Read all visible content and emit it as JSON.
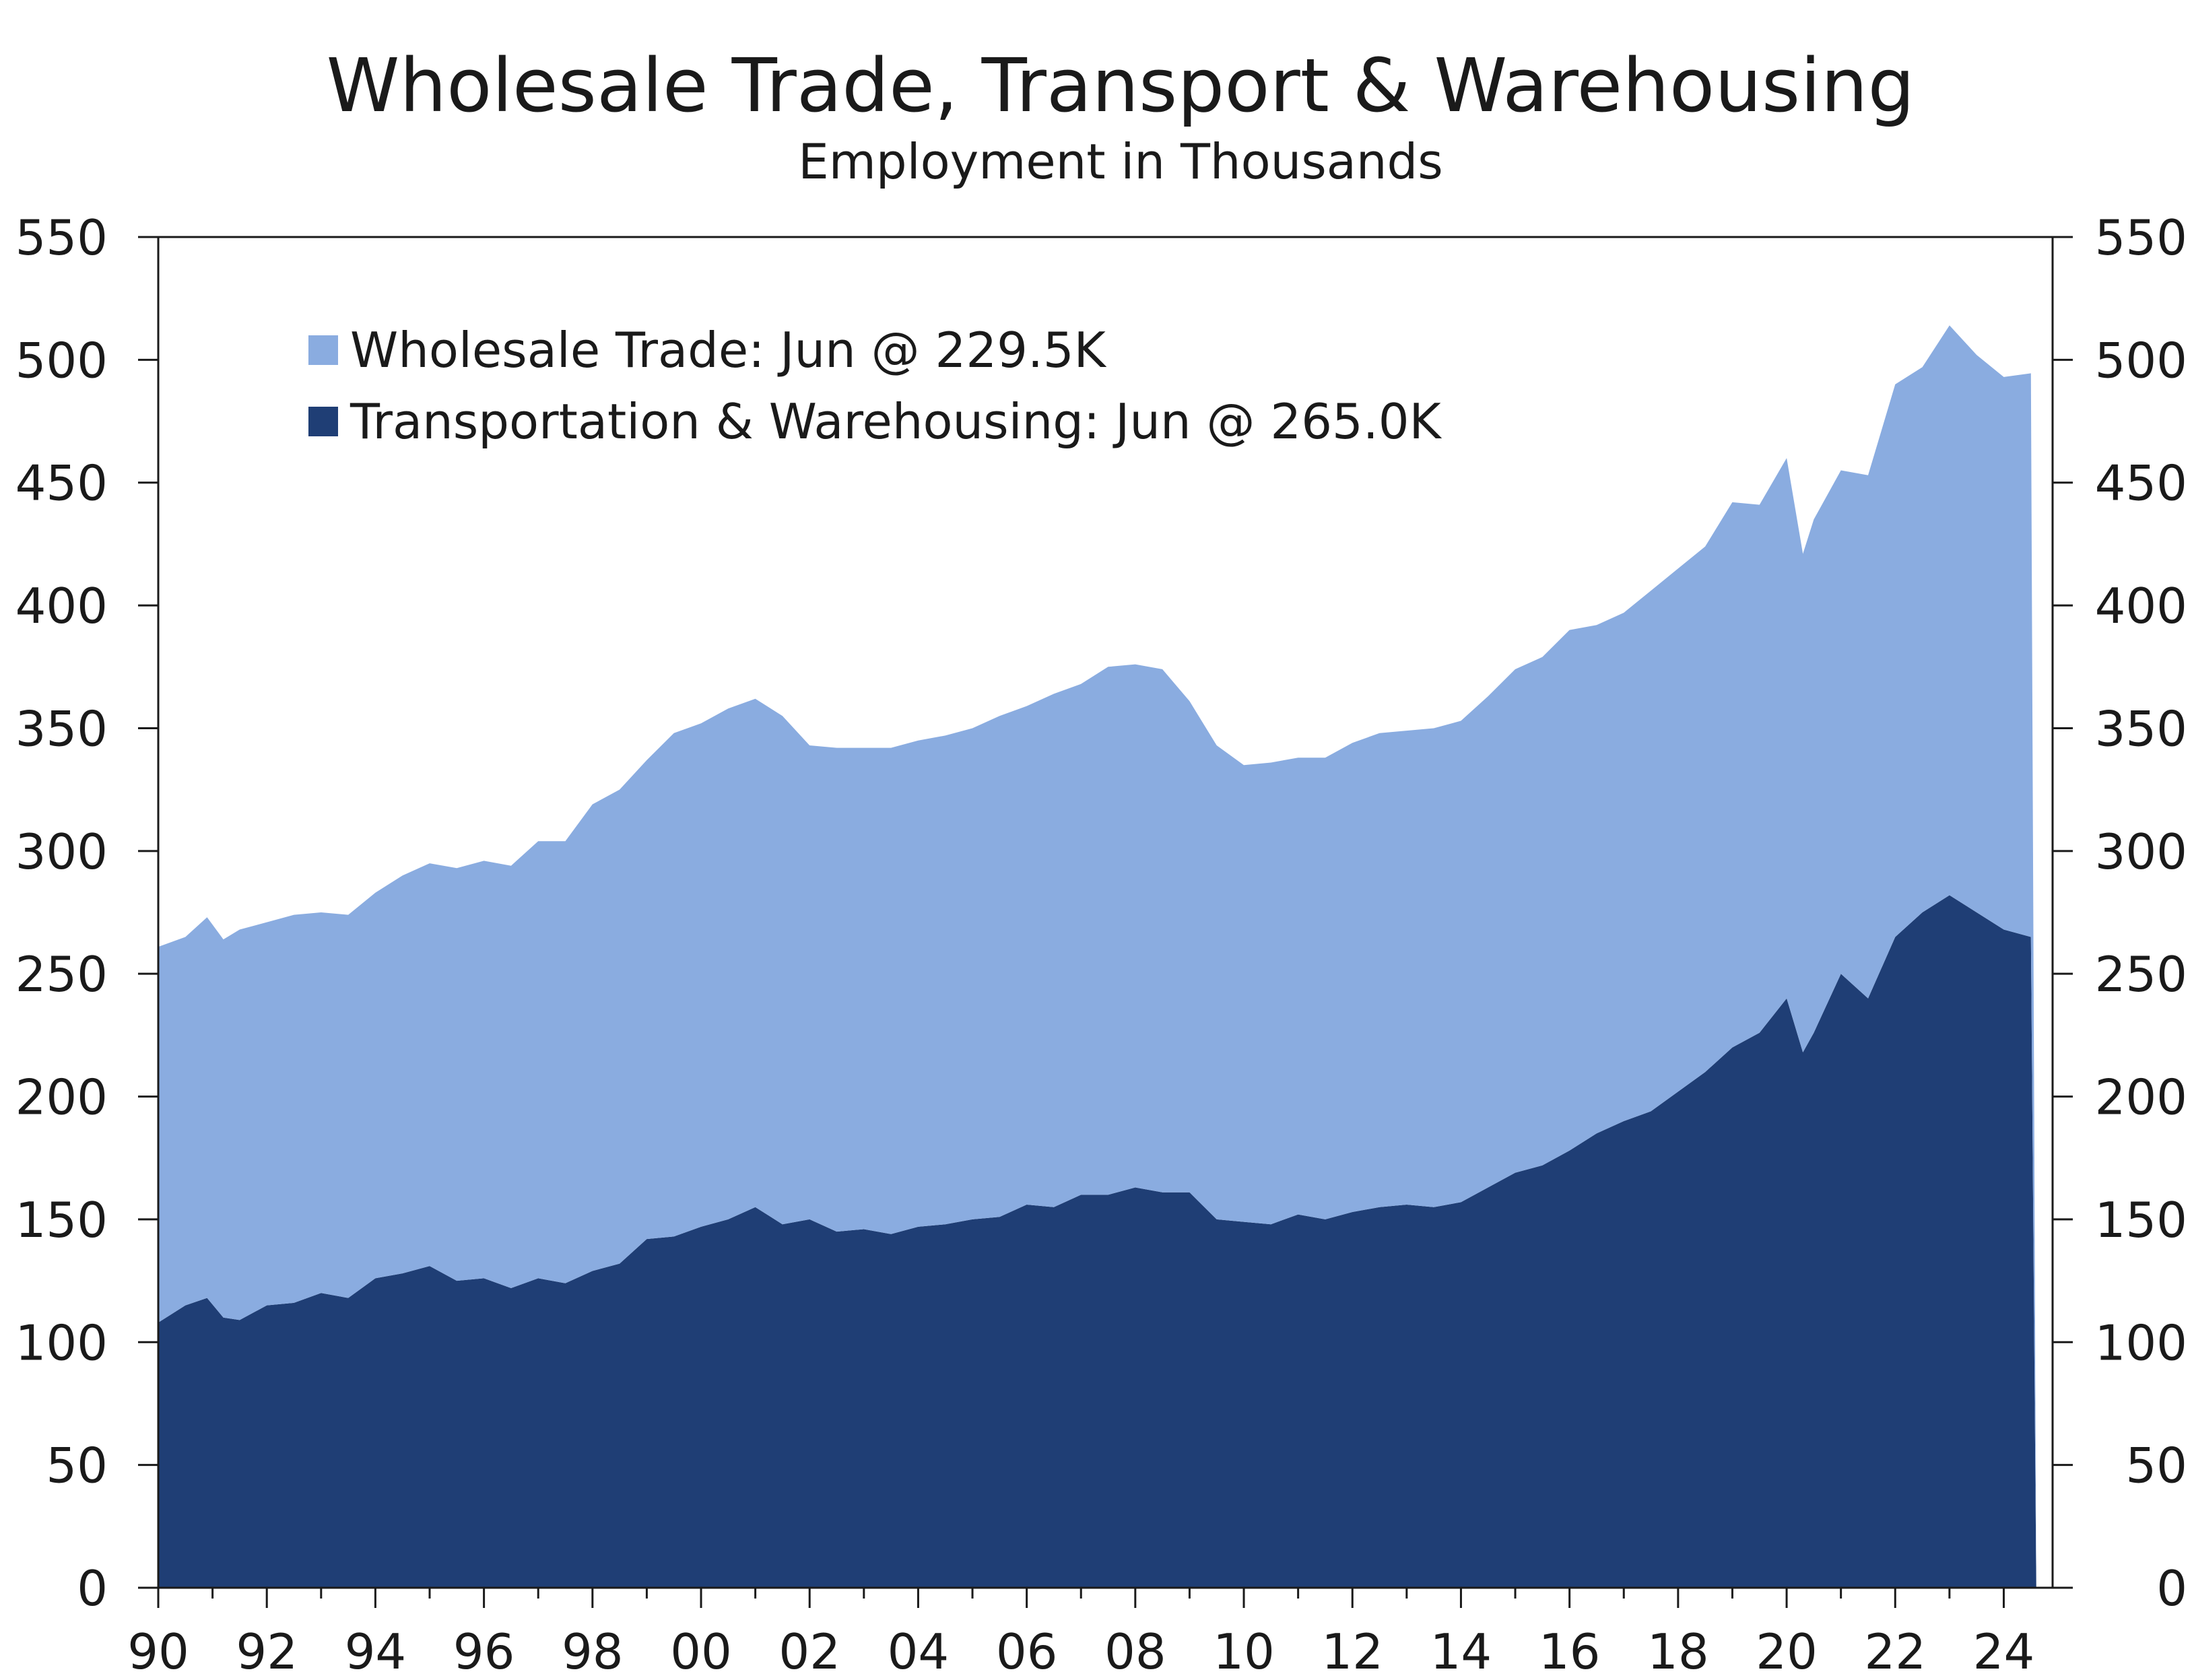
{
  "chart_data": {
    "type": "area",
    "stacked": true,
    "title": "Wholesale Trade, Transport & Warehousing",
    "subtitle": "Employment in Thousands",
    "xlabel": "",
    "ylabel": "",
    "ylim": [
      0,
      550
    ],
    "xlim": [
      1990,
      2024.9
    ],
    "y_ticks": [
      "0",
      "50",
      "100",
      "150",
      "200",
      "250",
      "300",
      "350",
      "400",
      "450",
      "500",
      "550"
    ],
    "y_ticks_right": [
      "0",
      "50",
      "100",
      "150",
      "200",
      "250",
      "300",
      "350",
      "400",
      "450",
      "500",
      "550"
    ],
    "x_tick_labels": [
      "90",
      "92",
      "94",
      "96",
      "98",
      "00",
      "02",
      "04",
      "06",
      "08",
      "10",
      "12",
      "14",
      "16",
      "18",
      "20",
      "22",
      "24"
    ],
    "x_tick_years": [
      1990,
      1992,
      1994,
      1996,
      1998,
      2000,
      2002,
      2004,
      2006,
      2008,
      2010,
      2012,
      2014,
      2016,
      2018,
      2020,
      2022,
      2024
    ],
    "legend_position": "top-left",
    "x": [
      1990.0,
      1990.5,
      1990.9,
      1991.2,
      1991.5,
      1992.0,
      1992.5,
      1993.0,
      1993.5,
      1994.0,
      1994.5,
      1995.0,
      1995.5,
      1996.0,
      1996.5,
      1997.0,
      1997.5,
      1998.0,
      1998.5,
      1999.0,
      1999.5,
      2000.0,
      2000.5,
      2001.0,
      2001.5,
      2002.0,
      2002.5,
      2003.0,
      2003.5,
      2004.0,
      2004.5,
      2005.0,
      2005.5,
      2006.0,
      2006.5,
      2007.0,
      2007.5,
      2008.0,
      2008.5,
      2009.0,
      2009.5,
      2010.0,
      2010.5,
      2011.0,
      2011.5,
      2012.0,
      2012.5,
      2013.0,
      2013.5,
      2014.0,
      2014.5,
      2015.0,
      2015.5,
      2016.0,
      2016.5,
      2017.0,
      2017.5,
      2018.0,
      2018.5,
      2019.0,
      2019.5,
      2020.0,
      2020.3,
      2020.5,
      2021.0,
      2021.5,
      2022.0,
      2022.5,
      2023.0,
      2023.5,
      2024.0,
      2024.5
    ],
    "series": [
      {
        "name": "Transportation & Warehousing",
        "legend_label": "Transportation & Warehousing: Jun @ 265.0K",
        "color": "#1f3e75",
        "values": [
          108,
          115,
          118,
          110,
          109,
          115,
          116,
          120,
          118,
          126,
          128,
          131,
          125,
          126,
          122,
          126,
          124,
          129,
          132,
          142,
          143,
          147,
          150,
          155,
          148,
          150,
          145,
          146,
          144,
          147,
          148,
          150,
          151,
          156,
          155,
          160,
          160,
          163,
          161,
          161,
          150,
          149,
          148,
          152,
          150,
          153,
          155,
          156,
          155,
          157,
          163,
          169,
          172,
          178,
          185,
          190,
          194,
          202,
          210,
          220,
          226,
          240,
          218,
          226,
          250,
          240,
          265,
          275,
          282,
          275,
          268,
          265
        ]
      },
      {
        "name": "Wholesale Trade",
        "legend_label": "Wholesale Trade: Jun @ 229.5K",
        "color": "#8aace0",
        "values": [
          153,
          150,
          155,
          154,
          159,
          156,
          158,
          155,
          156,
          157,
          162,
          164,
          168,
          170,
          172,
          178,
          180,
          190,
          193,
          195,
          205,
          205,
          208,
          207,
          207,
          193,
          197,
          196,
          198,
          198,
          199,
          200,
          204,
          203,
          209,
          208,
          215,
          213,
          213,
          200,
          193,
          186,
          188,
          186,
          188,
          191,
          193,
          193,
          195,
          196,
          200,
          205,
          207,
          212,
          207,
          207,
          212,
          213,
          214,
          222,
          215,
          220,
          203,
          209,
          205,
          213,
          225,
          222,
          232,
          227,
          225,
          229.5
        ]
      }
    ]
  }
}
